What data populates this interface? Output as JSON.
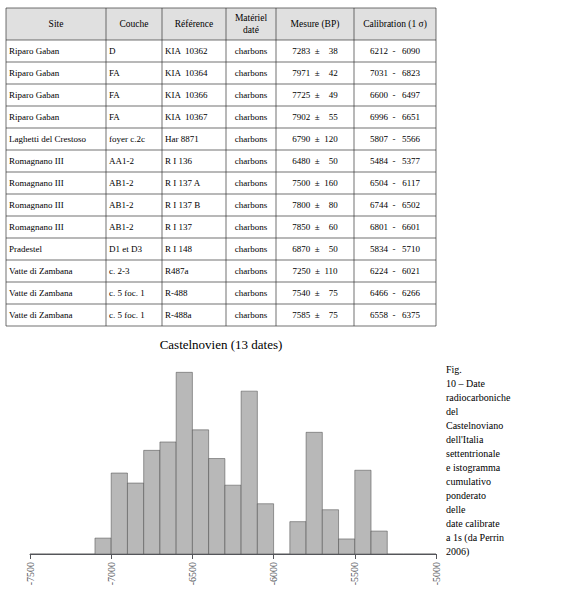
{
  "chart_data": {
    "type": "histogram",
    "title": "Castelnovien (13 dates)",
    "bins": [
      -7500,
      -7400,
      -7300,
      -7200,
      -7100,
      -7000,
      -6900,
      -6800,
      -6700,
      -6600,
      -6500,
      -6400,
      -6300,
      -6200,
      -6100,
      -6000,
      -5900,
      -5800,
      -5700,
      -5600,
      -5500,
      -5400,
      -5300,
      -5200,
      -5100,
      -5000
    ],
    "values": [
      0,
      0,
      0,
      0,
      0.1490385,
      0.7590301,
      0.6650474,
      0.9716733,
      1.0502521,
      1.7031083,
      1.1639722,
      0.8950099,
      0.6449852,
      1.5267532,
      0.4711298,
      0,
      0.3032391,
      1.1407443,
      0.4149378,
      0.1410788,
      0.7850467,
      0.2149533,
      0,
      0,
      0
    ],
    "color": "#b8b8b8",
    "xlim": [
      -7500,
      -5000
    ],
    "xticks": [
      -7500,
      -7000,
      -6500,
      -6000,
      -5500,
      -5000
    ],
    "ylim": [
      0,
      1.8
    ],
    "tick_labels": "x",
    "grid": false,
    "annotations": [
      "Fig.\n10 – Date\nradiocarboniche\ndel\nCastelnoviano\ndell'Italia\nsettentrionale\ne istogramma\ncumulativo\nponderato\ndelle\ndate calibrate\na 1s (da Perrin\n2006)"
    ],
    "table": {
      "headers": [
        "Site",
        "Couche",
        "Référence",
        "Matériel\ndaté",
        "Mesure (BP)",
        "Calibration (1 σ)"
      ],
      "rows": [
        [
          "Riparo Gaban",
          "D",
          "KIA  10362",
          "charbons",
          "7283  ±    38",
          "6212  -   6090"
        ],
        [
          "Riparo Gaban",
          "FA",
          "KIA  10364",
          "charbons",
          "7971  ±    42",
          "7031  -   6823"
        ],
        [
          "Riparo Gaban",
          "FA",
          "KIA  10366",
          "charbons",
          "7725  ±    49",
          "6600  -   6497"
        ],
        [
          "Riparo Gaban",
          "FA",
          "KIA  10367",
          "charbons",
          "7902  ±    55",
          "6996  -   6651"
        ],
        [
          "Laghetti del Crestoso",
          "foyer c.2c",
          "Har 8871",
          "charbons",
          "6790  ±  120",
          "5807  -   5566"
        ],
        [
          "Romagnano III",
          "AA1-2",
          "R I 136",
          "charbons",
          "6480  ±    50",
          "5484  -   5377"
        ],
        [
          "Romagnano III",
          "AB1-2",
          "R I 137 A",
          "charbons",
          "7500  ±  160",
          "6504  -   6117"
        ],
        [
          "Romagnano III",
          "AB1-2",
          "R I 137 B",
          "charbons",
          "7800  ±    80",
          "6744  -   6502"
        ],
        [
          "Romagnano III",
          "AB1-2",
          "R I 137",
          "charbons",
          "7850  ±    60",
          "6801  -   6601"
        ],
        [
          "Pradestel",
          "D1 et D3",
          "R I 148",
          "charbons",
          "6870  ±    50",
          "5834  -   5710"
        ],
        [
          "Vatte di Zambana",
          "c. 2-3",
          "R487a",
          "charbons",
          "7250  ±  110",
          "6224  -   6021"
        ],
        [
          "Vatte di Zambana",
          "c. 5 foc. 1",
          "R-488",
          "charbons",
          "7540  ±    75",
          "6466  -   6266"
        ],
        [
          "Vatte di Zambana",
          "c. 5 foc. 1",
          "R-488a",
          "charbons",
          "7585  ±    75",
          "6558  -   6375"
        ]
      ]
    }
  }
}
